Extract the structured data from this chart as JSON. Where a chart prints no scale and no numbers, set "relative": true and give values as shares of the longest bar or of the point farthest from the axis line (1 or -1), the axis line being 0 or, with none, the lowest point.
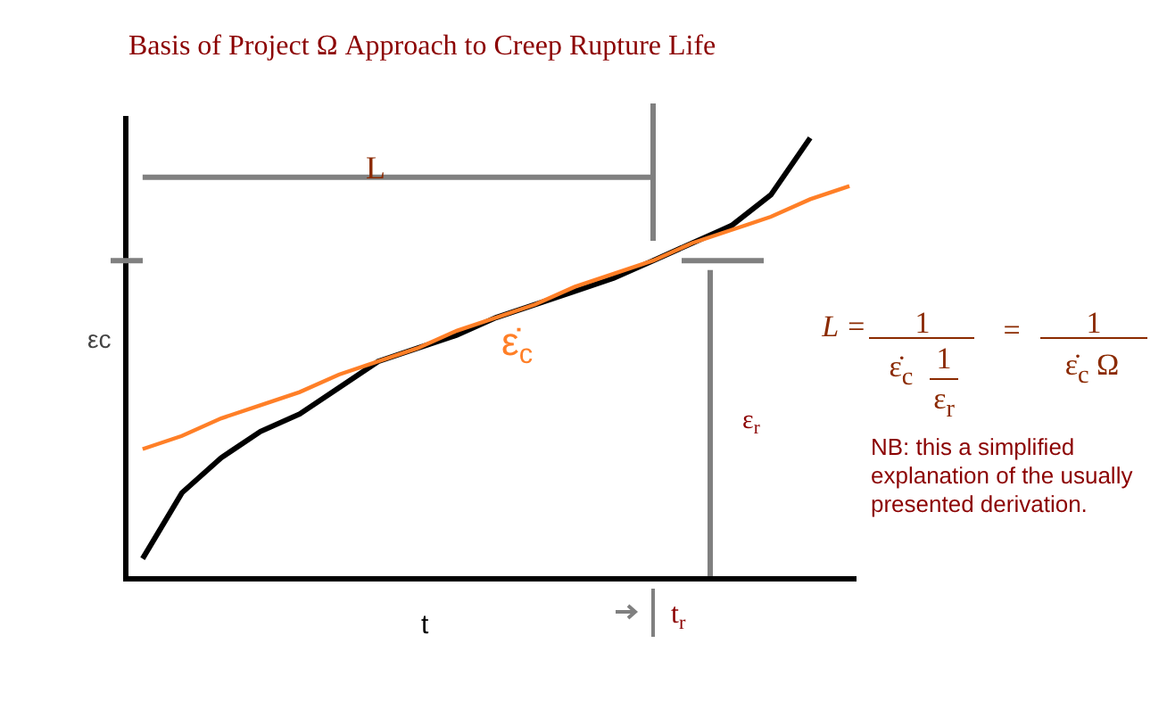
{
  "chart_data": {
    "type": "line",
    "title": "Basis of Project Ω Approach to Creep Rupture Life",
    "xlabel": "t",
    "ylabel": "εc",
    "relative": true,
    "categories": [
      null,
      null,
      null,
      null,
      null,
      null,
      null,
      null,
      null,
      null,
      null,
      null,
      null,
      null,
      null,
      null,
      null,
      null,
      null
    ],
    "series": [
      {
        "color": "#000000",
        "values": [
          0.04,
          0.19,
          0.27,
          0.33,
          0.37,
          0.43,
          0.49,
          0.52,
          0.55,
          0.59,
          0.62,
          0.65,
          0.68,
          0.72,
          0.76,
          0.8,
          0.87,
          1,
          null
        ]
      },
      {
        "color": "#ff7f27",
        "values": [
          0.29,
          0.32,
          0.36,
          0.39,
          0.42,
          0.46,
          0.49,
          0.52,
          0.56,
          0.59,
          0.62,
          0.66,
          0.69,
          0.72,
          0.76,
          0.79,
          0.82,
          0.86,
          0.89
        ]
      },
      {
        "color": "#808080",
        "values": [
          0.91,
          0.91,
          0.91,
          0.91,
          0.91,
          0.91,
          0.91,
          0.91,
          0.91,
          0.91,
          0.91,
          0.91,
          0.91,
          0.91,
          null,
          null,
          null,
          null,
          null
        ]
      }
    ],
    "ref_lines": [
      {
        "axis": "y",
        "value": 0.72,
        "color": "#808080"
      }
    ],
    "annotations": [
      "L",
      "ε̇$_{c}$",
      "L =",
      "1",
      "ε̇$_{c}$",
      "1",
      "ε$_{r}$",
      "=",
      "1",
      "ε̇$_{c}$ Ω",
      "NB: this a simplified explanation of the usually presented derivation.",
      "t$_{r}$",
      "ε$_{r}$"
    ]
  }
}
